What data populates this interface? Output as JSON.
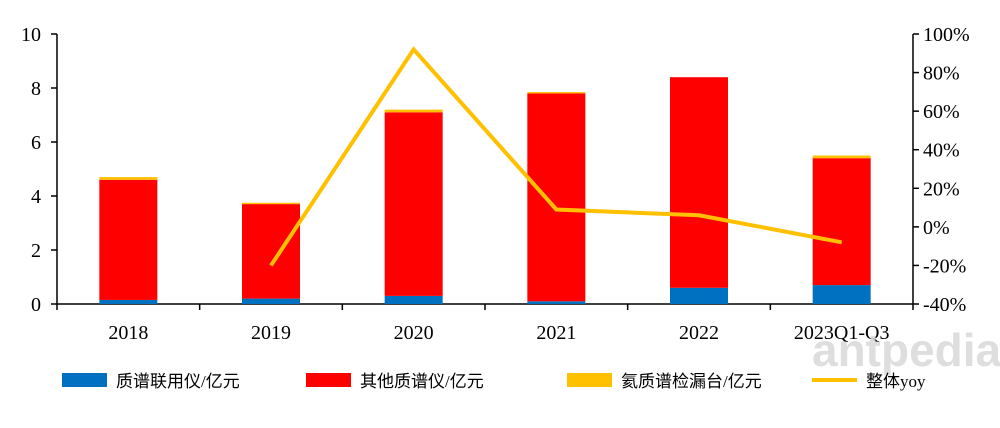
{
  "chart_data": {
    "type": "bar",
    "stacked": true,
    "categories": [
      "2018",
      "2019",
      "2020",
      "2021",
      "2022",
      "2023Q1-Q3"
    ],
    "series": [
      {
        "name": "质谱联用仪/亿元",
        "color": "#0070C0",
        "values": [
          0.15,
          0.2,
          0.3,
          0.1,
          0.6,
          0.7
        ]
      },
      {
        "name": "其他质谱仪/亿元",
        "color": "#FF0000",
        "values": [
          4.45,
          3.5,
          6.8,
          7.7,
          7.8,
          4.7
        ]
      },
      {
        "name": "氦质谱检漏台/亿元",
        "color": "#FFC000",
        "values": [
          0.1,
          0.05,
          0.1,
          0.05,
          0.0,
          0.1
        ]
      }
    ],
    "line_series": {
      "name": "整体yoy",
      "color": "#FFC000",
      "axis": "right",
      "values": [
        null,
        -20,
        92,
        9,
        6,
        -8
      ]
    },
    "y_left": {
      "lim": [
        0,
        10
      ],
      "ticks": [
        "0",
        "2",
        "4",
        "6",
        "8",
        "10"
      ]
    },
    "y_right": {
      "lim": [
        -40,
        100
      ],
      "ticks": [
        "-40%",
        "-20%",
        "0%",
        "20%",
        "40%",
        "60%",
        "80%",
        "100%"
      ]
    },
    "legend_position": "bottom",
    "grid": false
  },
  "watermark": "antpedia"
}
